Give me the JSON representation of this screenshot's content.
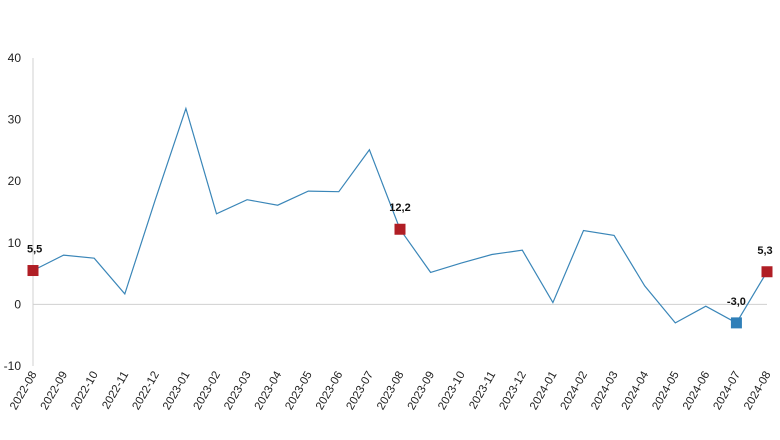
{
  "chart_data": {
    "type": "line",
    "x": [
      "2022-08",
      "2022-09",
      "2022-10",
      "2022-11",
      "2022-12",
      "2023-01",
      "2023-02",
      "2023-03",
      "2023-04",
      "2023-05",
      "2023-06",
      "2023-07",
      "2023-08",
      "2023-09",
      "2023-10",
      "2023-11",
      "2023-12",
      "2024-01",
      "2024-02",
      "2024-03",
      "2024-04",
      "2024-05",
      "2024-06",
      "2024-07",
      "2024-08"
    ],
    "series": [
      {
        "values": [
          5.5,
          8.0,
          7.5,
          1.7,
          17.0,
          31.8,
          14.7,
          17.0,
          16.1,
          18.4,
          18.3,
          25.1,
          12.2,
          5.2,
          6.7,
          8.1,
          8.8,
          0.3,
          12.0,
          11.2,
          3.0,
          -3.0,
          -0.3,
          -3.0,
          5.3
        ],
        "color": "#3a86b8"
      }
    ],
    "highlights": [
      {
        "index": 0,
        "label": "5,5",
        "color": "#b01e25"
      },
      {
        "index": 12,
        "label": "12,2",
        "color": "#b01e25"
      },
      {
        "index": 23,
        "label": "-3,0",
        "color": "#2f7fb8"
      },
      {
        "index": 24,
        "label": "5,3",
        "color": "#b01e25"
      }
    ],
    "yticks": [
      -10,
      0,
      10,
      20,
      30,
      40
    ],
    "ylim": [
      -10,
      40
    ],
    "title": "",
    "xlabel": "",
    "ylabel": "",
    "grid": false,
    "legend": "none"
  }
}
